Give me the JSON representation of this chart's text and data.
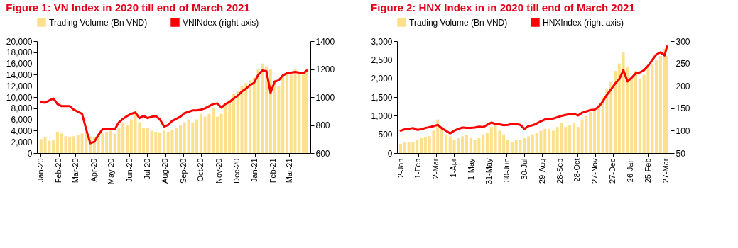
{
  "chart_data": [
    {
      "type": "bar",
      "title": "Figure 1: VN Index in 2020 till end of March 2021",
      "legend": "top",
      "x": [
        "2020-01-02",
        "2020-01-09",
        "2020-01-16",
        "2020-01-23",
        "2020-01-30",
        "2020-02-06",
        "2020-02-13",
        "2020-02-20",
        "2020-02-27",
        "2020-03-05",
        "2020-03-12",
        "2020-03-19",
        "2020-03-26",
        "2020-04-02",
        "2020-04-09",
        "2020-04-16",
        "2020-04-23",
        "2020-04-30",
        "2020-05-07",
        "2020-05-14",
        "2020-05-21",
        "2020-05-28",
        "2020-06-04",
        "2020-06-11",
        "2020-06-18",
        "2020-06-25",
        "2020-07-02",
        "2020-07-09",
        "2020-07-16",
        "2020-07-23",
        "2020-07-30",
        "2020-08-06",
        "2020-08-13",
        "2020-08-20",
        "2020-08-27",
        "2020-09-03",
        "2020-09-10",
        "2020-09-17",
        "2020-09-24",
        "2020-10-01",
        "2020-10-08",
        "2020-10-15",
        "2020-10-22",
        "2020-10-29",
        "2020-11-05",
        "2020-11-12",
        "2020-11-19",
        "2020-11-26",
        "2020-12-03",
        "2020-12-10",
        "2020-12-17",
        "2020-12-24",
        "2020-12-31",
        "2021-01-07",
        "2021-01-14",
        "2021-01-21",
        "2021-01-28",
        "2021-02-04",
        "2021-02-11",
        "2021-02-18",
        "2021-02-25",
        "2021-03-04",
        "2021-03-11",
        "2021-03-18",
        "2021-03-25",
        "2021-03-31"
      ],
      "xlim": [
        "2020-01-01",
        "2021-03-31"
      ],
      "xticks": [
        {
          "value": "2020-01-01",
          "label": "Jan-20"
        },
        {
          "value": "2020-02-01",
          "label": "Feb-20"
        },
        {
          "value": "2020-03-01",
          "label": "Mar-20"
        },
        {
          "value": "2020-04-01",
          "label": "Apr-20"
        },
        {
          "value": "2020-05-01",
          "label": "May-20"
        },
        {
          "value": "2020-06-01",
          "label": "Jun-20"
        },
        {
          "value": "2020-07-01",
          "label": "Jul-20"
        },
        {
          "value": "2020-08-01",
          "label": "Aug-20"
        },
        {
          "value": "2020-09-01",
          "label": "Sep-20"
        },
        {
          "value": "2020-10-01",
          "label": "Oct-20"
        },
        {
          "value": "2020-11-01",
          "label": "Nov-20"
        },
        {
          "value": "2020-12-01",
          "label": "Dec-20"
        },
        {
          "value": "2021-01-01",
          "label": "Jan-21"
        },
        {
          "value": "2021-02-01",
          "label": "Feb-21"
        },
        {
          "value": "2021-03-01",
          "label": "Mar-21"
        }
      ],
      "ylim": [
        0,
        20000
      ],
      "yticks": [
        {
          "value": 0,
          "label": "0"
        },
        {
          "value": 2000,
          "label": "2,000"
        },
        {
          "value": 4000,
          "label": "4,000"
        },
        {
          "value": 6000,
          "label": "6,000"
        },
        {
          "value": 8000,
          "label": "8,000"
        },
        {
          "value": 10000,
          "label": "10,000"
        },
        {
          "value": 12000,
          "label": "12,000"
        },
        {
          "value": 14000,
          "label": "14,000"
        },
        {
          "value": 16000,
          "label": "16,000"
        },
        {
          "value": 18000,
          "label": "18,000"
        },
        {
          "value": 20000,
          "label": "20,000"
        }
      ],
      "y2lim": [
        600,
        1400
      ],
      "y2ticks": [
        600,
        800,
        1000,
        1200,
        1400
      ],
      "series": [
        {
          "name": "Trading Volume (Bn VND)",
          "color": "#fde08c",
          "values": [
            2500,
            2800,
            2200,
            2400,
            3800,
            3500,
            3000,
            2800,
            3000,
            3200,
            3500,
            3800,
            3000,
            2800,
            3200,
            3500,
            3800,
            4000,
            3500,
            4500,
            5500,
            5000,
            6000,
            7500,
            5500,
            4500,
            4500,
            4000,
            3800,
            3700,
            4000,
            3800,
            4200,
            4500,
            5000,
            5500,
            6000,
            5500,
            6000,
            7000,
            6500,
            7000,
            8000,
            6500,
            7000,
            8500,
            9500,
            10500,
            11000,
            12000,
            12500,
            13000,
            13500,
            15000,
            16000,
            15500,
            15000,
            13000,
            12000,
            14000,
            14500,
            14000,
            15000,
            14500,
            14000,
            15000
          ]
        },
        {
          "name": "VNINdex (right axis)",
          "type": "line",
          "axis": "y2",
          "color": "#ff0000",
          "values": [
            965,
            960,
            975,
            990,
            950,
            935,
            935,
            935,
            910,
            895,
            880,
            770,
            670,
            680,
            730,
            770,
            775,
            775,
            770,
            820,
            845,
            865,
            880,
            890,
            850,
            865,
            850,
            860,
            865,
            840,
            790,
            800,
            830,
            845,
            860,
            885,
            895,
            905,
            905,
            910,
            920,
            935,
            950,
            955,
            925,
            950,
            965,
            990,
            1010,
            1040,
            1060,
            1085,
            1103,
            1160,
            1190,
            1185,
            1030,
            1110,
            1120,
            1155,
            1170,
            1175,
            1180,
            1175,
            1170,
            1190
          ]
        }
      ]
    },
    {
      "type": "bar",
      "title": "Figure 2: HNX Index in in 2020 till end of March 2021",
      "legend": "top",
      "x": [
        "2020-01-02",
        "2020-01-09",
        "2020-01-16",
        "2020-01-23",
        "2020-01-30",
        "2020-02-06",
        "2020-02-13",
        "2020-02-20",
        "2020-02-27",
        "2020-03-05",
        "2020-03-12",
        "2020-03-19",
        "2020-03-26",
        "2020-04-02",
        "2020-04-09",
        "2020-04-16",
        "2020-04-23",
        "2020-04-30",
        "2020-05-07",
        "2020-05-14",
        "2020-05-21",
        "2020-05-28",
        "2020-06-04",
        "2020-06-11",
        "2020-06-18",
        "2020-06-25",
        "2020-07-02",
        "2020-07-09",
        "2020-07-16",
        "2020-07-23",
        "2020-07-30",
        "2020-08-06",
        "2020-08-13",
        "2020-08-20",
        "2020-08-27",
        "2020-09-03",
        "2020-09-10",
        "2020-09-17",
        "2020-09-24",
        "2020-10-01",
        "2020-10-08",
        "2020-10-15",
        "2020-10-22",
        "2020-10-29",
        "2020-11-05",
        "2020-11-12",
        "2020-11-19",
        "2020-11-26",
        "2020-12-03",
        "2020-12-10",
        "2020-12-17",
        "2020-12-24",
        "2020-12-31",
        "2021-01-07",
        "2021-01-14",
        "2021-01-21",
        "2021-01-28",
        "2021-02-04",
        "2021-02-11",
        "2021-02-18",
        "2021-02-25",
        "2021-03-04",
        "2021-03-11",
        "2021-03-18",
        "2021-03-25",
        "2021-03-29"
      ],
      "xlim": [
        "2020-01-02",
        "2021-03-29"
      ],
      "xticks": [
        {
          "value": "2020-01-02",
          "label": "2-Jan"
        },
        {
          "value": "2020-02-01",
          "label": "1-Feb"
        },
        {
          "value": "2020-03-02",
          "label": "2-Mar"
        },
        {
          "value": "2020-04-01",
          "label": "1-Apr"
        },
        {
          "value": "2020-05-01",
          "label": "1-May"
        },
        {
          "value": "2020-05-31",
          "label": "31-May"
        },
        {
          "value": "2020-06-30",
          "label": "30-Jun"
        },
        {
          "value": "2020-07-30",
          "label": "30-Jul"
        },
        {
          "value": "2020-08-29",
          "label": "29-Aug"
        },
        {
          "value": "2020-09-28",
          "label": "28-Sep"
        },
        {
          "value": "2020-10-28",
          "label": "28-Oct"
        },
        {
          "value": "2020-11-27",
          "label": "27-Nov"
        },
        {
          "value": "2020-12-27",
          "label": "27-Dec"
        },
        {
          "value": "2021-01-26",
          "label": "26-Jan"
        },
        {
          "value": "2021-02-25",
          "label": "25-Feb"
        },
        {
          "value": "2021-03-27",
          "label": "27-Mar"
        }
      ],
      "ylim": [
        0,
        3000
      ],
      "yticks": [
        {
          "value": 0,
          "label": "0"
        },
        500,
        {
          "value": 1000,
          "label": "1,000"
        },
        {
          "value": 1500,
          "label": "1,500"
        },
        {
          "value": 2000,
          "label": "2,000"
        },
        {
          "value": 2500,
          "label": "2,500"
        },
        {
          "value": 3000,
          "label": "3,000"
        }
      ],
      "y2lim": [
        50,
        300
      ],
      "y2ticks": [
        50,
        100,
        150,
        200,
        250,
        300
      ],
      "series": [
        {
          "name": "Trading Volume (Bn VND)",
          "color": "#fde08c",
          "values": [
            250,
            300,
            280,
            300,
            350,
            400,
            420,
            450,
            600,
            900,
            650,
            500,
            450,
            350,
            400,
            450,
            500,
            400,
            350,
            400,
            500,
            550,
            700,
            800,
            600,
            500,
            350,
            300,
            350,
            350,
            400,
            450,
            500,
            550,
            600,
            650,
            650,
            600,
            700,
            800,
            700,
            750,
            800,
            700,
            900,
            1000,
            1100,
            1150,
            1300,
            1500,
            1700,
            1900,
            2200,
            2400,
            2700,
            2300,
            2000,
            2200,
            2000,
            2100,
            2300,
            2400,
            2500,
            2600,
            2800,
            2600
          ]
        },
        {
          "name": "HNXIndex (right axis)",
          "type": "line",
          "axis": "y2",
          "color": "#ff0000",
          "values": [
            100,
            103,
            104,
            106,
            102,
            103,
            106,
            108,
            110,
            113,
            105,
            100,
            94,
            100,
            104,
            107,
            106,
            106,
            107,
            109,
            108,
            113,
            118,
            115,
            114,
            112,
            113,
            115,
            115,
            113,
            104,
            110,
            112,
            116,
            121,
            125,
            126,
            127,
            130,
            133,
            135,
            137,
            138,
            134,
            140,
            143,
            146,
            147,
            153,
            165,
            180,
            192,
            205,
            215,
            235,
            210,
            218,
            228,
            230,
            235,
            245,
            258,
            270,
            275,
            268,
            288
          ]
        }
      ]
    }
  ]
}
